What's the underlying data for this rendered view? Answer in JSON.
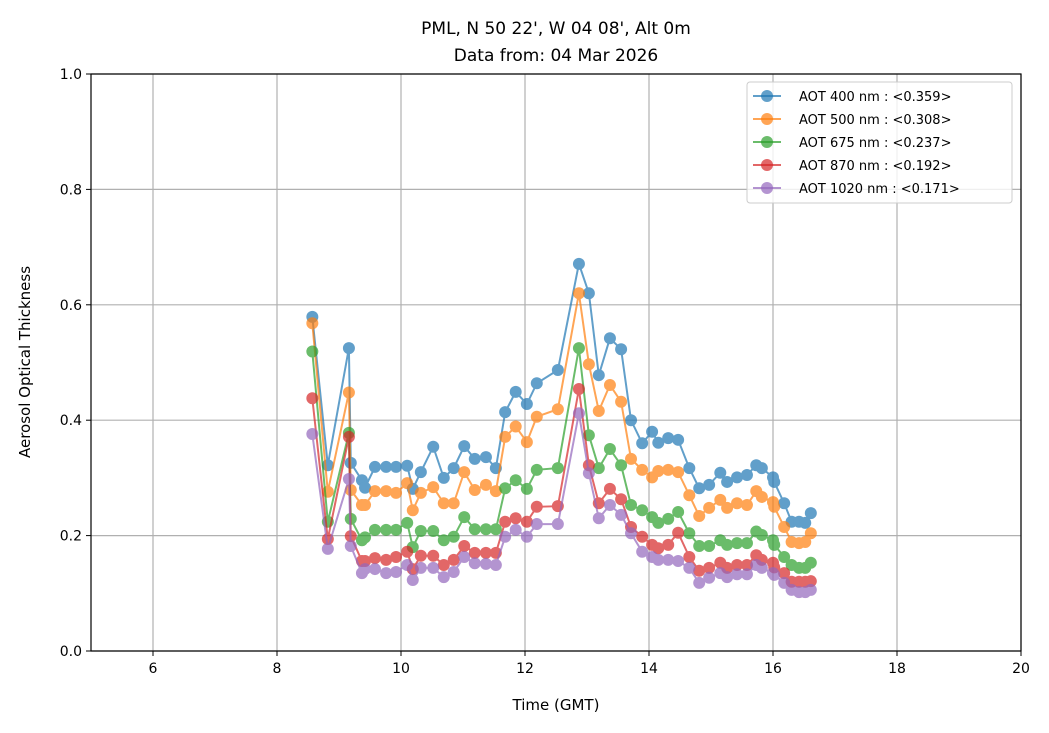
{
  "chart_data": {
    "type": "line",
    "title": [
      "PML, N 50 22', W 04 08', Alt 0m",
      "Data from: 04 Mar 2026"
    ],
    "xlabel": "Time (GMT)",
    "ylabel": "Aerosol Optical Thickness",
    "xlim": [
      5,
      20
    ],
    "ylim": [
      0,
      1.0
    ],
    "xticks": [
      6,
      8,
      10,
      12,
      14,
      16,
      18,
      20
    ],
    "xtick_labels": [
      "6",
      "8",
      "10",
      "12",
      "14",
      "16",
      "18",
      "20"
    ],
    "yticks": [
      0,
      0.2,
      0.4,
      0.6,
      0.8,
      1.0
    ],
    "ytick_labels": [
      "0.0",
      "0.2",
      "0.4",
      "0.6",
      "0.8",
      "1.0"
    ],
    "grid": true,
    "legend_position": "top-right",
    "x": [
      8.57,
      8.82,
      9.16,
      9.19,
      9.37,
      9.42,
      9.58,
      9.76,
      9.92,
      10.1,
      10.19,
      10.32,
      10.52,
      10.69,
      10.85,
      11.02,
      11.19,
      11.37,
      11.53,
      11.68,
      11.85,
      12.03,
      12.19,
      12.53,
      12.87,
      13.03,
      13.19,
      13.37,
      13.55,
      13.71,
      13.89,
      14.05,
      14.15,
      14.31,
      14.47,
      14.65,
      14.81,
      14.97,
      15.15,
      15.26,
      15.42,
      15.58,
      15.73,
      15.82,
      16.0,
      16.02,
      16.18,
      16.3,
      16.42,
      16.52,
      16.61
    ],
    "series": [
      {
        "name": "AOT 400 nm : <0.359>",
        "color": "#1f77b4",
        "values": [
          0.579,
          0.322,
          0.525,
          0.326,
          0.296,
          0.283,
          0.319,
          0.319,
          0.319,
          0.321,
          0.281,
          0.31,
          0.354,
          0.3,
          0.317,
          0.355,
          0.333,
          0.336,
          0.317,
          0.414,
          0.449,
          0.428,
          0.464,
          0.487,
          0.671,
          0.62,
          0.478,
          0.542,
          0.523,
          0.4,
          0.36,
          0.38,
          0.361,
          0.369,
          0.366,
          0.317,
          0.282,
          0.288,
          0.309,
          0.293,
          0.301,
          0.305,
          0.322,
          0.317,
          0.301,
          0.293,
          0.256,
          0.224,
          0.224,
          0.222,
          0.239
        ]
      },
      {
        "name": "AOT 500 nm : <0.308>",
        "color": "#ff7f0e",
        "values": [
          0.568,
          0.276,
          0.448,
          0.279,
          0.253,
          0.253,
          0.277,
          0.277,
          0.274,
          0.291,
          0.244,
          0.274,
          0.284,
          0.256,
          0.256,
          0.31,
          0.279,
          0.288,
          0.277,
          0.371,
          0.389,
          0.362,
          0.406,
          0.419,
          0.62,
          0.497,
          0.416,
          0.461,
          0.432,
          0.333,
          0.314,
          0.301,
          0.312,
          0.314,
          0.31,
          0.27,
          0.234,
          0.248,
          0.262,
          0.248,
          0.256,
          0.253,
          0.277,
          0.267,
          0.258,
          0.25,
          0.215,
          0.189,
          0.187,
          0.189,
          0.204
        ]
      },
      {
        "name": "AOT 675 nm : <0.237>",
        "color": "#2ca02c",
        "values": [
          0.519,
          0.224,
          0.378,
          0.229,
          0.192,
          0.197,
          0.21,
          0.21,
          0.21,
          0.222,
          0.18,
          0.208,
          0.208,
          0.192,
          0.198,
          0.232,
          0.211,
          0.211,
          0.211,
          0.282,
          0.296,
          0.281,
          0.314,
          0.317,
          0.525,
          0.374,
          0.317,
          0.35,
          0.322,
          0.253,
          0.244,
          0.232,
          0.222,
          0.229,
          0.241,
          0.204,
          0.182,
          0.182,
          0.192,
          0.184,
          0.187,
          0.187,
          0.207,
          0.201,
          0.192,
          0.184,
          0.163,
          0.149,
          0.144,
          0.144,
          0.153
        ]
      },
      {
        "name": "AOT 870 nm : <0.192>",
        "color": "#d62728",
        "values": [
          0.438,
          0.194,
          0.371,
          0.199,
          0.156,
          0.156,
          0.161,
          0.158,
          0.163,
          0.172,
          0.142,
          0.165,
          0.165,
          0.149,
          0.158,
          0.182,
          0.17,
          0.17,
          0.17,
          0.224,
          0.23,
          0.224,
          0.25,
          0.251,
          0.454,
          0.322,
          0.256,
          0.281,
          0.263,
          0.215,
          0.198,
          0.184,
          0.178,
          0.184,
          0.205,
          0.163,
          0.139,
          0.144,
          0.153,
          0.144,
          0.149,
          0.149,
          0.166,
          0.158,
          0.153,
          0.145,
          0.135,
          0.12,
          0.12,
          0.12,
          0.121
        ]
      },
      {
        "name": "AOT 1020 nm : <0.171>",
        "color": "#9467bd",
        "values": [
          0.376,
          0.177,
          0.298,
          0.182,
          0.135,
          0.142,
          0.142,
          0.135,
          0.137,
          0.149,
          0.123,
          0.144,
          0.144,
          0.128,
          0.137,
          0.163,
          0.152,
          0.151,
          0.149,
          0.198,
          0.21,
          0.198,
          0.22,
          0.22,
          0.412,
          0.308,
          0.23,
          0.253,
          0.236,
          0.204,
          0.172,
          0.163,
          0.158,
          0.158,
          0.156,
          0.144,
          0.118,
          0.127,
          0.135,
          0.128,
          0.133,
          0.133,
          0.149,
          0.144,
          0.135,
          0.132,
          0.118,
          0.106,
          0.102,
          0.102,
          0.106
        ]
      }
    ]
  }
}
